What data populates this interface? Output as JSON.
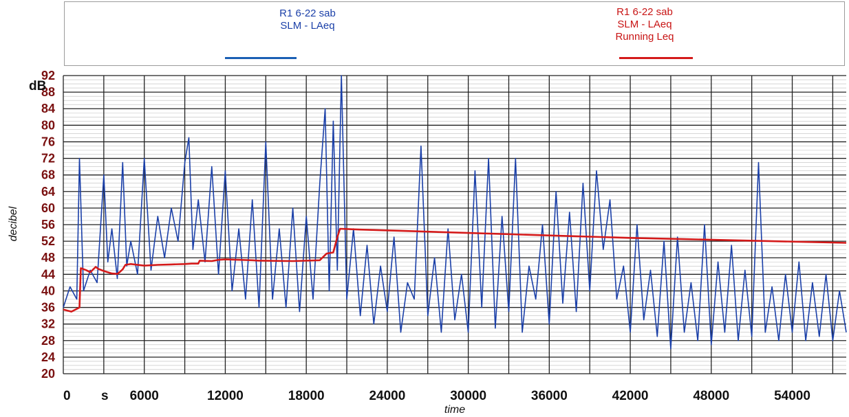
{
  "chart_data": {
    "type": "line",
    "xlabel": "time",
    "ylabel": "decibel",
    "x_unit_label": "s",
    "y_unit_label": "dB",
    "xlim": [
      0,
      58000
    ],
    "ylim": [
      20,
      92
    ],
    "x_ticks": [
      0,
      6000,
      12000,
      18000,
      24000,
      30000,
      36000,
      42000,
      48000,
      54000
    ],
    "y_ticks": [
      20,
      24,
      28,
      32,
      36,
      40,
      44,
      48,
      52,
      56,
      60,
      64,
      68,
      72,
      76,
      80,
      84,
      88,
      92
    ],
    "grid": true,
    "legend_position": "top",
    "series": [
      {
        "name": "R1 6-22 sab",
        "name_lines": [
          "R1 6-22 sab",
          "SLM - LAeq"
        ],
        "color": "#1a3fa8",
        "x": [
          0,
          500,
          1000,
          1200,
          1500,
          2000,
          2500,
          3000,
          3300,
          3600,
          4000,
          4400,
          4700,
          5000,
          5500,
          6000,
          6500,
          7000,
          7500,
          8000,
          8500,
          9000,
          9300,
          9600,
          10000,
          10500,
          11000,
          11500,
          12000,
          12500,
          13000,
          13500,
          14000,
          14500,
          15000,
          15500,
          16000,
          16500,
          17000,
          17500,
          18000,
          18500,
          19000,
          19400,
          19700,
          20000,
          20300,
          20600,
          21000,
          21500,
          22000,
          22500,
          23000,
          23500,
          24000,
          24500,
          25000,
          25500,
          26000,
          26500,
          27000,
          27500,
          28000,
          28500,
          29000,
          29500,
          30000,
          30500,
          31000,
          31500,
          32000,
          32500,
          33000,
          33500,
          34000,
          34500,
          35000,
          35500,
          36000,
          36500,
          37000,
          37500,
          38000,
          38500,
          39000,
          39500,
          40000,
          40500,
          41000,
          41500,
          42000,
          42500,
          43000,
          43500,
          44000,
          44500,
          45000,
          45500,
          46000,
          46500,
          47000,
          47500,
          48000,
          48500,
          49000,
          49500,
          50000,
          50500,
          51000,
          51500,
          52000,
          52500,
          53000,
          53500,
          54000,
          54500,
          55000,
          55500,
          56000,
          56500,
          57000,
          57500,
          58000
        ],
        "y": [
          36,
          41,
          38,
          72,
          40,
          45,
          42,
          68,
          47,
          55,
          43,
          71,
          46,
          52,
          44,
          72,
          45,
          58,
          48,
          60,
          52,
          71,
          77,
          50,
          62,
          47,
          70,
          44,
          69,
          40,
          55,
          38,
          62,
          36,
          76,
          38,
          55,
          36,
          60,
          35,
          58,
          38,
          66,
          84,
          40,
          81,
          45,
          92,
          38,
          55,
          34,
          51,
          32,
          46,
          35,
          53,
          30,
          42,
          38,
          75,
          34,
          48,
          30,
          55,
          33,
          44,
          30,
          69,
          36,
          72,
          31,
          58,
          35,
          72,
          30,
          46,
          38,
          56,
          32,
          64,
          37,
          59,
          35,
          66,
          40,
          69,
          50,
          62,
          38,
          46,
          30,
          56,
          33,
          45,
          29,
          52,
          26,
          53,
          30,
          42,
          28,
          56,
          27,
          47,
          30,
          51,
          28,
          45,
          29,
          71,
          30,
          41,
          28,
          44,
          30,
          47,
          28,
          42,
          29,
          44,
          28,
          40,
          30
        ]
      },
      {
        "name": "R1 6-22 sab",
        "name_lines": [
          "R1 6-22 sab",
          "SLM - LAeq",
          "Running Leq"
        ],
        "color": "#d41a1a",
        "x": [
          0,
          600,
          900,
          1200,
          1300,
          1700,
          2000,
          2400,
          2600,
          3000,
          3600,
          4000,
          4200,
          4400,
          4600,
          5000,
          6000,
          7000,
          8000,
          9000,
          9500,
          10000,
          10100,
          11000,
          11500,
          12000,
          14000,
          14500,
          17000,
          19000,
          19500,
          20000,
          20300,
          20500,
          22000,
          26000,
          30000,
          34000,
          38000,
          42000,
          46000,
          50000,
          54000,
          58000
        ],
        "y": [
          35.5,
          35,
          35.5,
          36,
          45.5,
          45,
          44.5,
          45.8,
          45.3,
          44.8,
          44.2,
          44.1,
          44.6,
          45.2,
          46.3,
          46.5,
          46.1,
          46.3,
          46.4,
          46.5,
          46.6,
          46.6,
          47.3,
          47.2,
          47.5,
          47.6,
          47.4,
          47.3,
          47.2,
          47.4,
          49.0,
          49.3,
          53.0,
          55.0,
          54.8,
          54.4,
          54.0,
          53.6,
          53.2,
          52.8,
          52.5,
          52.2,
          51.9,
          51.6
        ]
      }
    ]
  }
}
